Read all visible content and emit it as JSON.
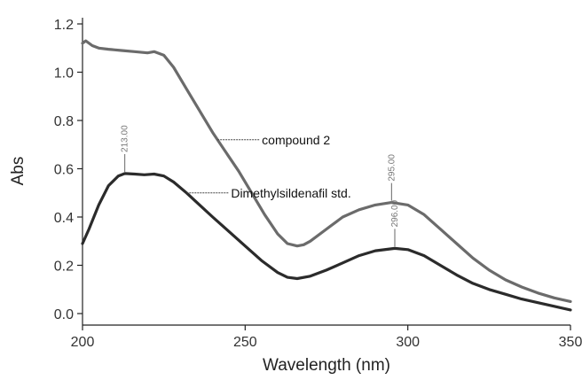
{
  "chart_data": {
    "type": "line",
    "xlabel": "Wavelength (nm)",
    "ylabel": "Abs",
    "xlim": [
      200,
      350
    ],
    "ylim": [
      0,
      1.2
    ],
    "x_ticks": [
      200,
      250,
      300,
      350
    ],
    "y_ticks": [
      0.0,
      0.2,
      0.4,
      0.6,
      0.8,
      1.0,
      1.2
    ],
    "x_tick_labels": [
      "200",
      "250",
      "300",
      "350"
    ],
    "y_tick_labels": [
      "0.0",
      "0.2",
      "0.4",
      "0.6",
      "0.8",
      "1.0",
      "1.2"
    ],
    "grid": false,
    "series": [
      {
        "name": "compound 2",
        "color": "#6b6b6b",
        "x": [
          200,
          201,
          203,
          205,
          208,
          212,
          216,
          220,
          222,
          225,
          228,
          232,
          236,
          240,
          244,
          248,
          252,
          256,
          260,
          263,
          266,
          268,
          270,
          275,
          280,
          285,
          290,
          295,
          300,
          305,
          310,
          315,
          320,
          325,
          330,
          335,
          340,
          345,
          350
        ],
        "y": [
          1.12,
          1.13,
          1.11,
          1.1,
          1.095,
          1.09,
          1.085,
          1.08,
          1.085,
          1.07,
          1.02,
          0.93,
          0.84,
          0.75,
          0.67,
          0.59,
          0.5,
          0.41,
          0.33,
          0.29,
          0.28,
          0.285,
          0.3,
          0.35,
          0.4,
          0.43,
          0.45,
          0.46,
          0.45,
          0.41,
          0.35,
          0.29,
          0.23,
          0.18,
          0.14,
          0.11,
          0.085,
          0.065,
          0.05
        ]
      },
      {
        "name": "Dimethylsildenafil std.",
        "color": "#2b2b2b",
        "x": [
          200,
          202,
          205,
          208,
          211,
          213,
          216,
          219,
          222,
          225,
          228,
          232,
          236,
          240,
          245,
          250,
          255,
          260,
          263,
          266,
          270,
          275,
          280,
          285,
          290,
          296,
          300,
          305,
          310,
          315,
          320,
          325,
          330,
          335,
          340,
          345,
          350
        ],
        "y": [
          0.29,
          0.35,
          0.45,
          0.53,
          0.57,
          0.58,
          0.578,
          0.575,
          0.578,
          0.57,
          0.545,
          0.5,
          0.45,
          0.4,
          0.34,
          0.28,
          0.22,
          0.17,
          0.15,
          0.145,
          0.155,
          0.18,
          0.21,
          0.24,
          0.26,
          0.27,
          0.265,
          0.24,
          0.2,
          0.16,
          0.125,
          0.1,
          0.08,
          0.06,
          0.045,
          0.03,
          0.015
        ]
      }
    ],
    "annotations": [
      {
        "text": "213.00",
        "x": 213,
        "y": 0.58,
        "series": 1
      },
      {
        "text": "295.00",
        "x": 295,
        "y": 0.46,
        "series": 0
      },
      {
        "text": "296.00",
        "x": 296,
        "y": 0.27,
        "series": 1
      }
    ],
    "series_labels": [
      {
        "text": "compound 2",
        "series": 0,
        "at_x": 241.5
      },
      {
        "text": "Dimethylsildenafil std.",
        "series": 1,
        "at_x": 232
      }
    ]
  }
}
